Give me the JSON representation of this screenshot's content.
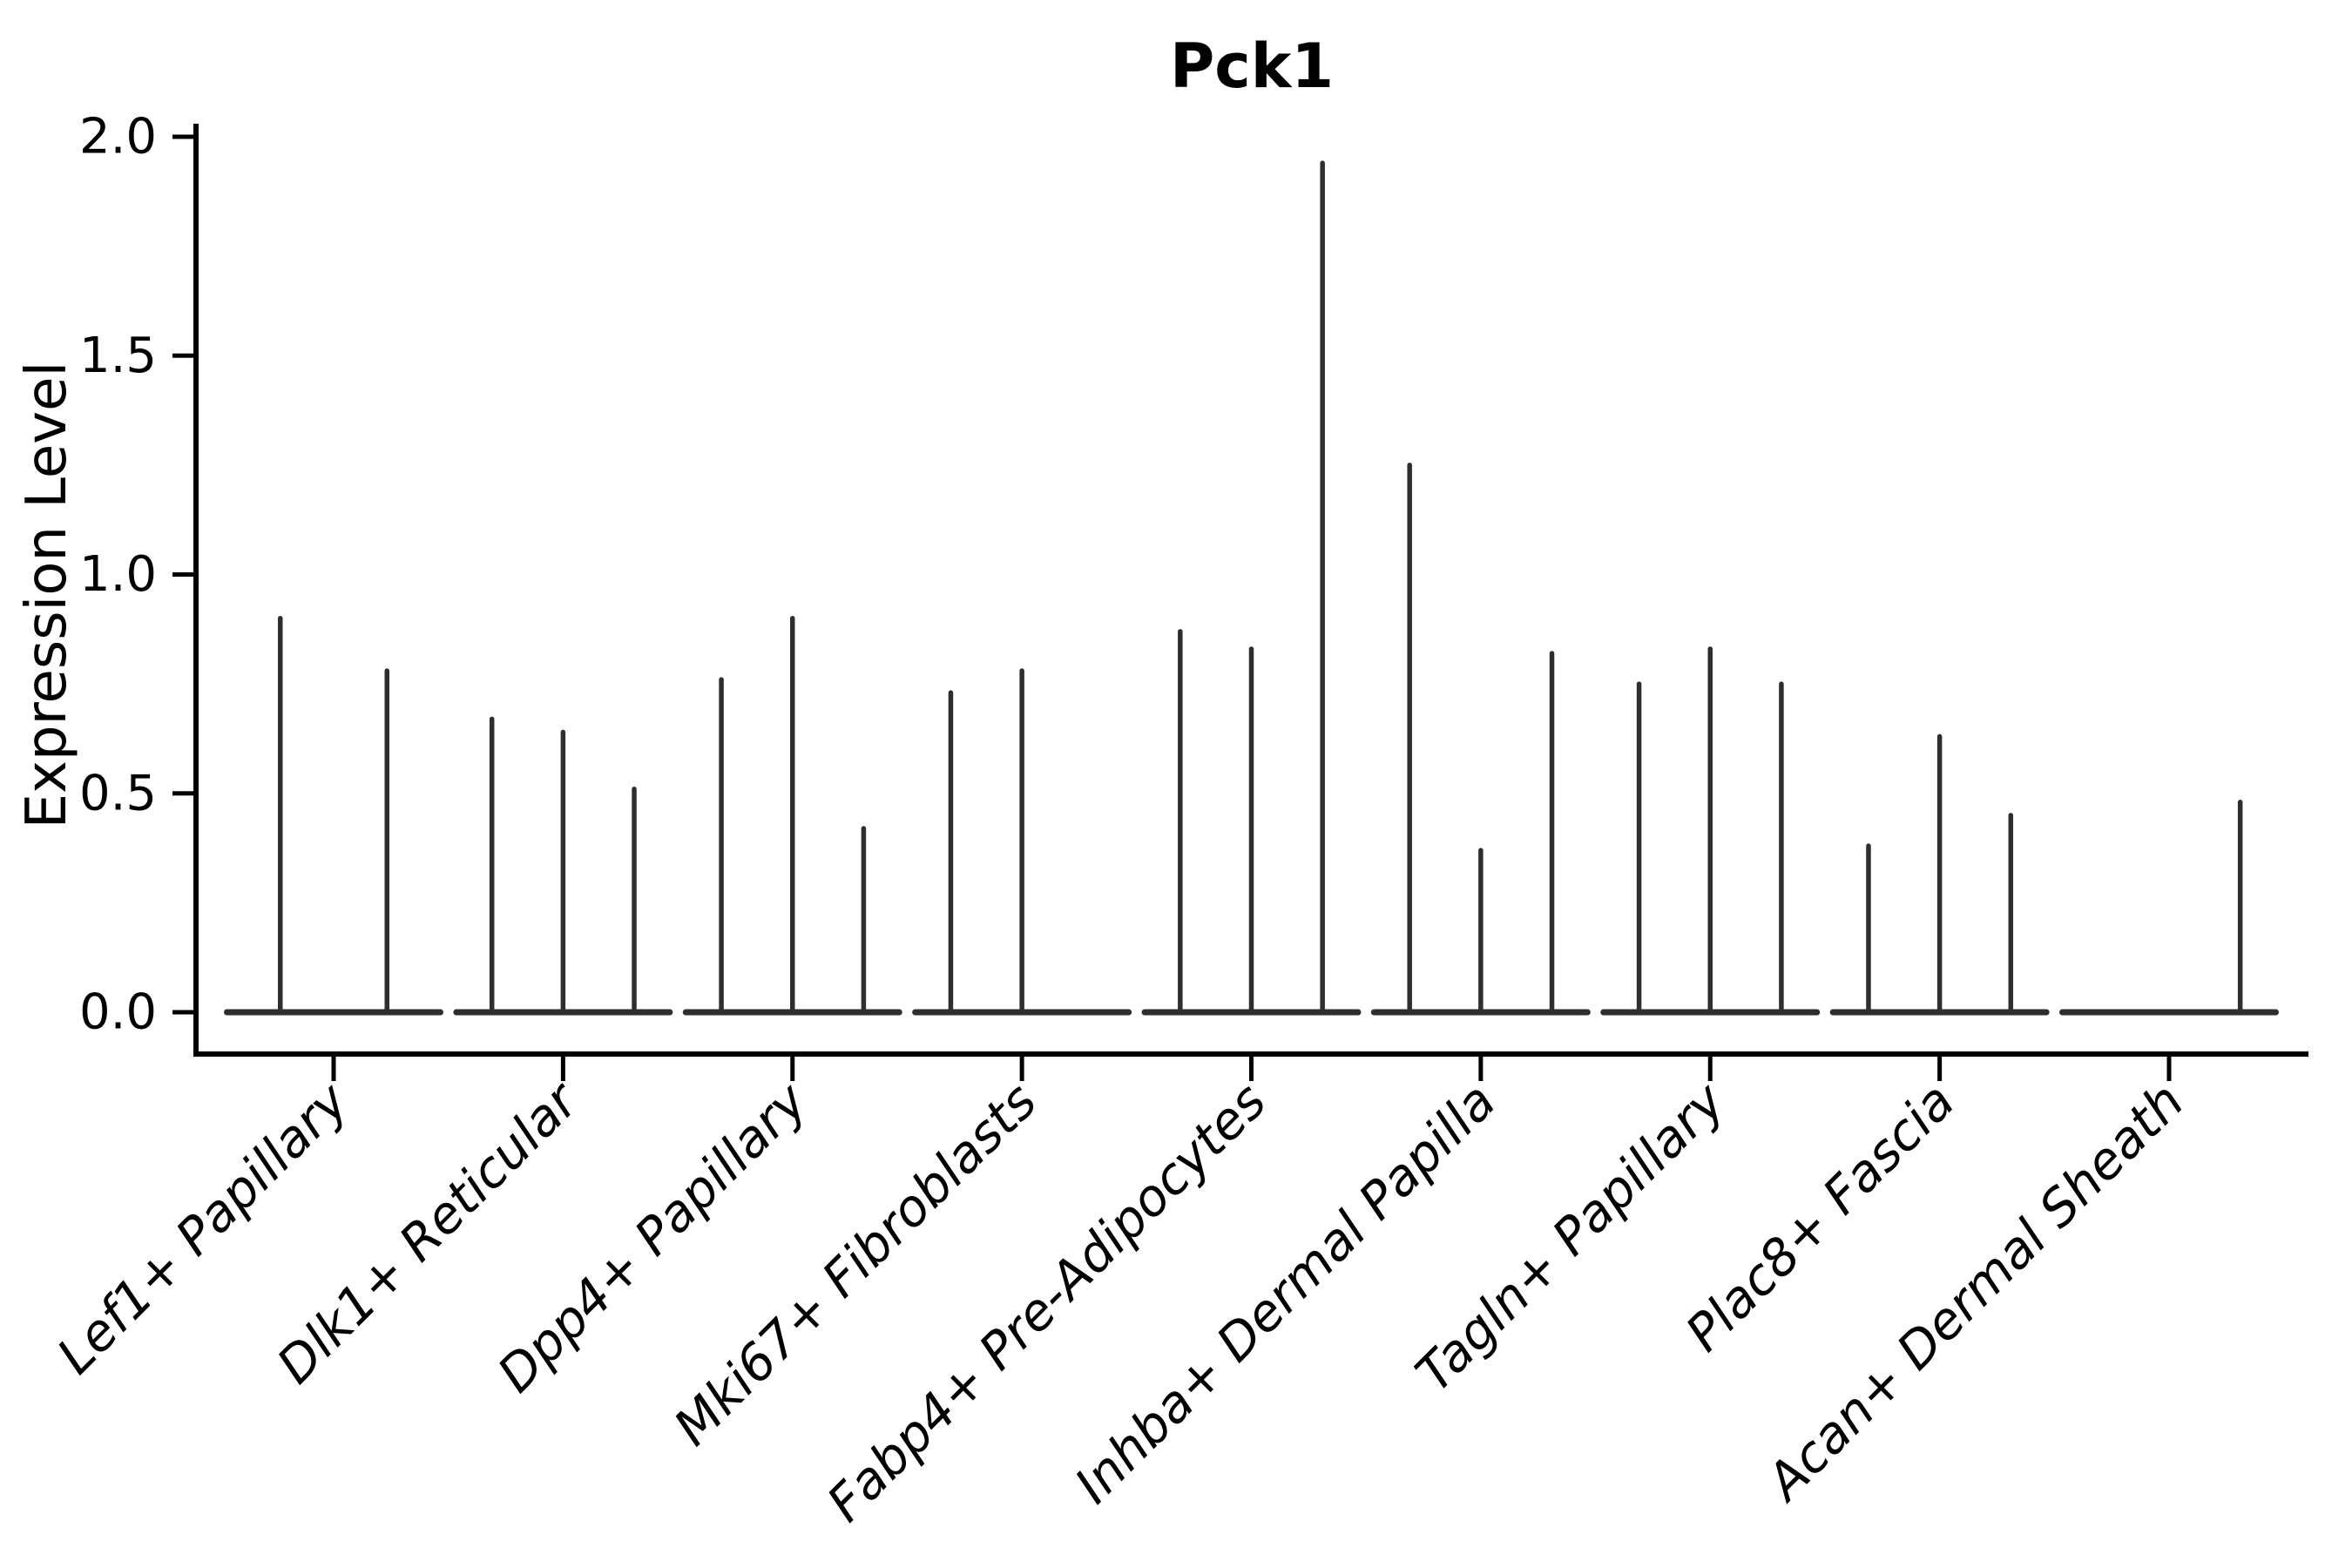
{
  "chart_data": {
    "type": "violin",
    "title": "Pck1",
    "ylabel": "Expression Level",
    "xlabel": "",
    "ylim": [
      0.0,
      2.0
    ],
    "ytick_labels": [
      "0.0",
      "0.5",
      "1.0",
      "1.5",
      "2.0"
    ],
    "grid": false,
    "legend": "none",
    "description": "Split violin plot of Pck1 expression; violins are collapsed to a flat baseline at 0 with a thin vertical spike up to each violin's maximum expression. A value of 0 means a flat violin with no spike.",
    "categories": [
      "Lef1+ Papillary",
      "Dlk1+ Reticular",
      "Dpp4+ Papillary",
      "Mki67+ Fibroblasts",
      "Fabp4+ Pre-Adipocytes",
      "Inhba+ Dermal Papilla",
      "Tagln+ Papillary",
      "Plac8+ Fascia",
      "Acan+ Dermal Sheath"
    ],
    "violins": [
      {
        "category": "Lef1+ Papillary",
        "values": [
          0.9,
          0.78
        ]
      },
      {
        "category": "Dlk1+ Reticular",
        "values": [
          0.67,
          0.64,
          0.51
        ]
      },
      {
        "category": "Dpp4+ Papillary",
        "values": [
          0.76,
          0.9,
          0.42
        ]
      },
      {
        "category": "Mki67+ Fibroblasts",
        "values": [
          0.73,
          0.78,
          0
        ]
      },
      {
        "category": "Fabp4+ Pre-Adipocytes",
        "values": [
          0.87,
          0.83,
          1.94
        ]
      },
      {
        "category": "Inhba+ Dermal Papilla",
        "values": [
          1.25,
          0.37,
          0.82
        ]
      },
      {
        "category": "Tagln+ Papillary",
        "values": [
          0.75,
          0.83,
          0.75
        ]
      },
      {
        "category": "Plac8+ Fascia",
        "values": [
          0.38,
          0.63,
          0.45
        ]
      },
      {
        "category": "Acan+ Dermal Sheath",
        "values": [
          0,
          0,
          0.48
        ]
      }
    ],
    "colors": {
      "violin_line": "#2e2e2e",
      "axis": "#000000"
    }
  }
}
